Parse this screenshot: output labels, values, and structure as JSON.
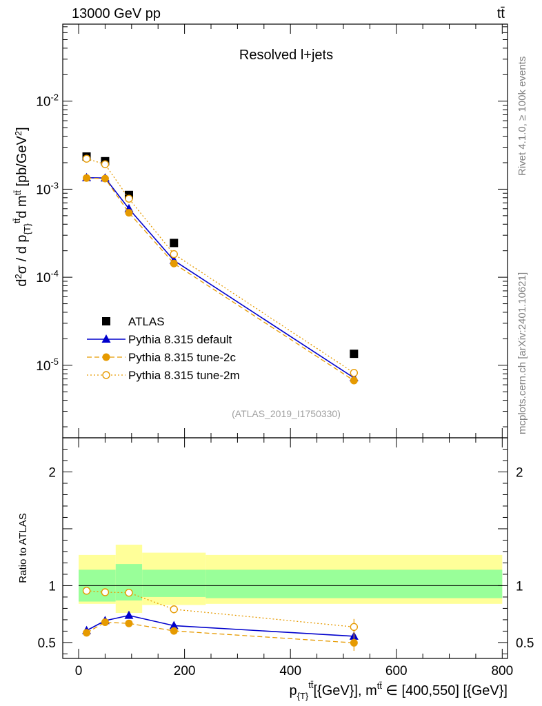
{
  "header": {
    "energy_label": "13000 GeV pp",
    "process_label": "tt̄",
    "rivet_label": "Rivet 4.1.0, ≥ 100k events",
    "source_label": "mcplots.cern.ch [arXiv:2401.10621]",
    "analysis_id": "(ATLAS_2019_I1750330)"
  },
  "chart_data": [
    {
      "type": "line",
      "panel": "main",
      "title": "Resolved l+jets",
      "yscale": "log",
      "ylabel": "d²σ / d p_{T}^{tt̄} d m^{tt̄} [pb/GeV²]",
      "xlim": [
        -30,
        810
      ],
      "ylim": [
        1.5e-06,
        0.075
      ],
      "y_ticks": [
        {
          "value": 1e-05,
          "label": "10^-5"
        },
        {
          "value": 0.0001,
          "label": "10^-4"
        },
        {
          "value": 0.001,
          "label": "10^-3"
        },
        {
          "value": 0.01,
          "label": "10^-2"
        }
      ],
      "series": [
        {
          "name": "ATLAS",
          "style": "square",
          "color": "#000000",
          "x": [
            15,
            50,
            95,
            180,
            520
          ],
          "y": [
            0.00235,
            0.00208,
            0.00086,
            0.000245,
            1.35e-05
          ]
        },
        {
          "name": "Pythia 8.315 default",
          "style": "triangle-solid",
          "color": "#0000cc",
          "x": [
            15,
            50,
            95,
            180,
            520
          ],
          "y": [
            0.00135,
            0.00134,
            0.0006,
            0.000155,
            7.2e-06
          ]
        },
        {
          "name": "Pythia 8.315 tune-2c",
          "style": "circle-dashed",
          "color": "#e69a00",
          "x": [
            15,
            50,
            95,
            180,
            520
          ],
          "y": [
            0.00134,
            0.00132,
            0.00054,
            0.000143,
            6.7e-06
          ]
        },
        {
          "name": "Pythia 8.315 tune-2m",
          "style": "open-circle-dotted",
          "color": "#e69a00",
          "x": [
            15,
            50,
            95,
            180,
            520
          ],
          "y": [
            0.00222,
            0.00192,
            0.00078,
            0.000183,
            8.2e-06
          ]
        }
      ]
    },
    {
      "type": "line",
      "panel": "ratio",
      "ylabel": "Ratio to ATLAS",
      "xlabel": "p_{T}^{tt̄}[{GeV}], m^{tt̄} ∈ [400,550] [{GeV}]",
      "xlim": [
        -30,
        810
      ],
      "ylim": [
        0.36,
        2.3
      ],
      "x_ticks": [
        0,
        200,
        400,
        600,
        800
      ],
      "y_ticks": [
        0.5,
        1,
        2
      ],
      "bands": [
        {
          "x": [
            0,
            70
          ],
          "inner": [
            0.86,
            1.14
          ],
          "outer": [
            0.84,
            1.27
          ]
        },
        {
          "x": [
            70,
            120
          ],
          "inner": [
            0.87,
            1.19
          ],
          "outer": [
            0.76,
            1.36
          ]
        },
        {
          "x": [
            120,
            240
          ],
          "inner": [
            0.9,
            1.14
          ],
          "outer": [
            0.83,
            1.29
          ]
        },
        {
          "x": [
            240,
            800
          ],
          "inner": [
            0.89,
            1.14
          ],
          "outer": [
            0.84,
            1.27
          ]
        }
      ],
      "series": [
        {
          "name": "Pythia 8.315 default",
          "style": "triangle-solid",
          "color": "#0000cc",
          "x": [
            15,
            50,
            95,
            180,
            520
          ],
          "y": [
            0.605,
            0.692,
            0.738,
            0.648,
            0.555
          ],
          "err": [
            0.02,
            0.02,
            0.02,
            0.025,
            0.03
          ]
        },
        {
          "name": "Pythia 8.315 tune-2c",
          "style": "circle-dashed",
          "color": "#e69a00",
          "x": [
            15,
            50,
            95,
            180,
            520
          ],
          "y": [
            0.585,
            0.678,
            0.668,
            0.602,
            0.497
          ],
          "err": [
            0.02,
            0.02,
            0.025,
            0.03,
            0.07
          ]
        },
        {
          "name": "Pythia 8.315 tune-2m",
          "style": "open-circle-dotted",
          "color": "#e69a00",
          "x": [
            15,
            50,
            95,
            180,
            520
          ],
          "y": [
            0.955,
            0.942,
            0.938,
            0.792,
            0.637
          ],
          "err": [
            0.01,
            0.01,
            0.015,
            0.02,
            0.07
          ]
        }
      ]
    }
  ]
}
